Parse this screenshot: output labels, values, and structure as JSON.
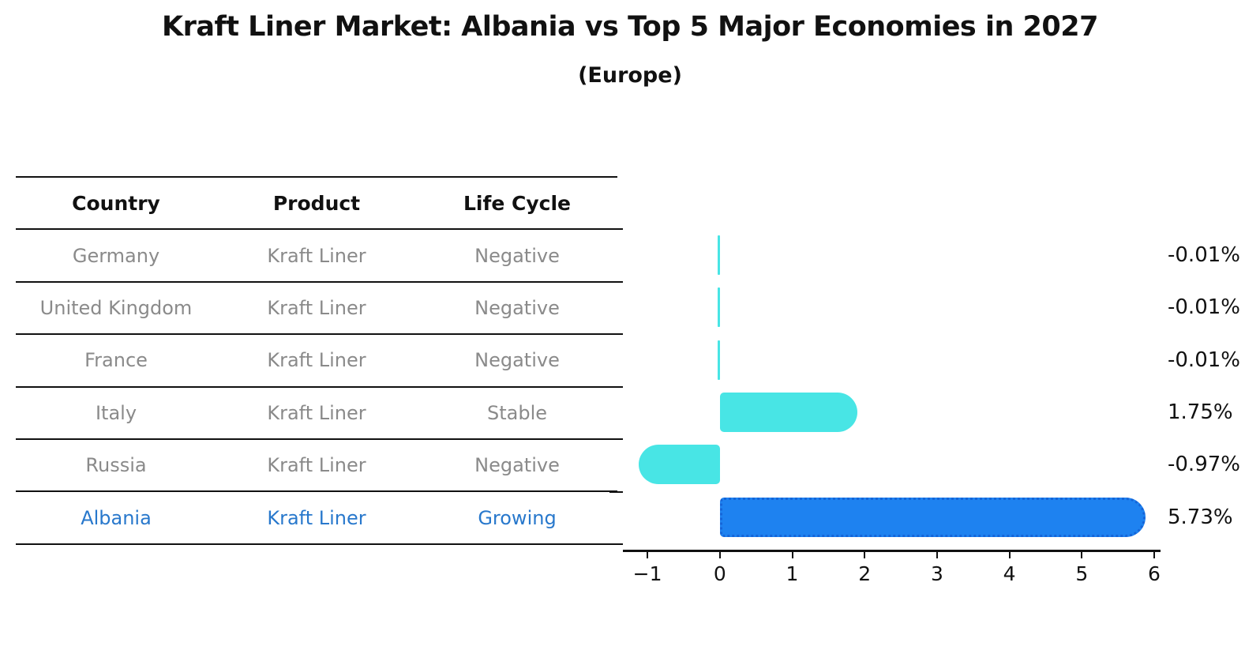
{
  "header": {
    "title": "Kraft Liner Market: Albania vs Top 5 Major Economies in 2027",
    "subtitle": "(Europe)"
  },
  "table": {
    "headers": [
      "Country",
      "Product",
      "Life Cycle"
    ],
    "rows": [
      {
        "country": "Germany",
        "product": "Kraft Liner",
        "life_cycle": "Negative",
        "highlight": false
      },
      {
        "country": "United Kingdom",
        "product": "Kraft Liner",
        "life_cycle": "Negative",
        "highlight": false
      },
      {
        "country": "France",
        "product": "Kraft Liner",
        "life_cycle": "Negative",
        "highlight": false
      },
      {
        "country": "Italy",
        "product": "Kraft Liner",
        "life_cycle": "Stable",
        "highlight": false
      },
      {
        "country": "Russia",
        "product": "Kraft Liner",
        "life_cycle": "Negative",
        "highlight": false
      },
      {
        "country": "Albania",
        "product": "Kraft Liner",
        "life_cycle": "Growing",
        "highlight": true
      }
    ]
  },
  "chart_data": {
    "type": "bar",
    "orientation": "horizontal",
    "title": "Kraft Liner Market: Albania vs Top 5 Major Economies in 2027",
    "subtitle": "(Europe)",
    "categories": [
      "Germany",
      "United Kingdom",
      "France",
      "Italy",
      "Russia",
      "Albania"
    ],
    "values": [
      -0.01,
      -0.01,
      -0.01,
      1.75,
      -0.97,
      5.73
    ],
    "value_labels": [
      "-0.01%",
      "-0.01%",
      "-0.01%",
      "1.75%",
      "-0.97%",
      "5.73%"
    ],
    "x_ticks": [
      -1,
      0,
      1,
      2,
      3,
      4,
      5,
      6
    ],
    "x_tick_labels": [
      "−1",
      "0",
      "1",
      "2",
      "3",
      "4",
      "5",
      "6"
    ],
    "xlim": [
      -1.35,
      6.1
    ],
    "grid": false,
    "legend": false,
    "xlabel": "",
    "ylabel": "",
    "highlight_category": "Albania"
  },
  "colors": {
    "bar_default": "#48E5E5",
    "bar_highlight": "#1E82F0",
    "bar_highlight_edge": "#1565D8",
    "table_text": "#8a8a8a",
    "table_highlight_text": "#2878CC",
    "header_text": "#111111",
    "axis": "#111111"
  }
}
